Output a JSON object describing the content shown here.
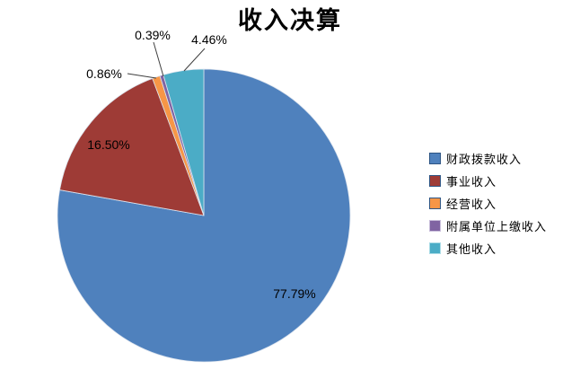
{
  "chart_data": {
    "type": "pie",
    "title": "收入决算",
    "legend_position": "right",
    "start_angle_deg": 0,
    "direction": "clockwise",
    "categories": [
      "财政拨款收入",
      "事业收入",
      "经营收入",
      "附属单位上缴收入",
      "其他收入"
    ],
    "values": [
      77.79,
      16.5,
      0.86,
      0.39,
      4.46
    ],
    "labels": [
      "77.79%",
      "16.50%",
      "0.86%",
      "0.39%",
      "4.46%"
    ],
    "colors": [
      "#4F81BD",
      "#9E3B36",
      "#F79646",
      "#8064A2",
      "#4BACC6"
    ],
    "legend_marker_border_colors": [
      "#2E5584",
      "#2E5584",
      "#2E5584",
      "#C9BEDB",
      "#AADCE6"
    ],
    "slice_separator_color": "#dbe3ee",
    "leader_line_color": "#3f3f3f",
    "label_color": "#000000",
    "background_color": "#ffffff"
  }
}
